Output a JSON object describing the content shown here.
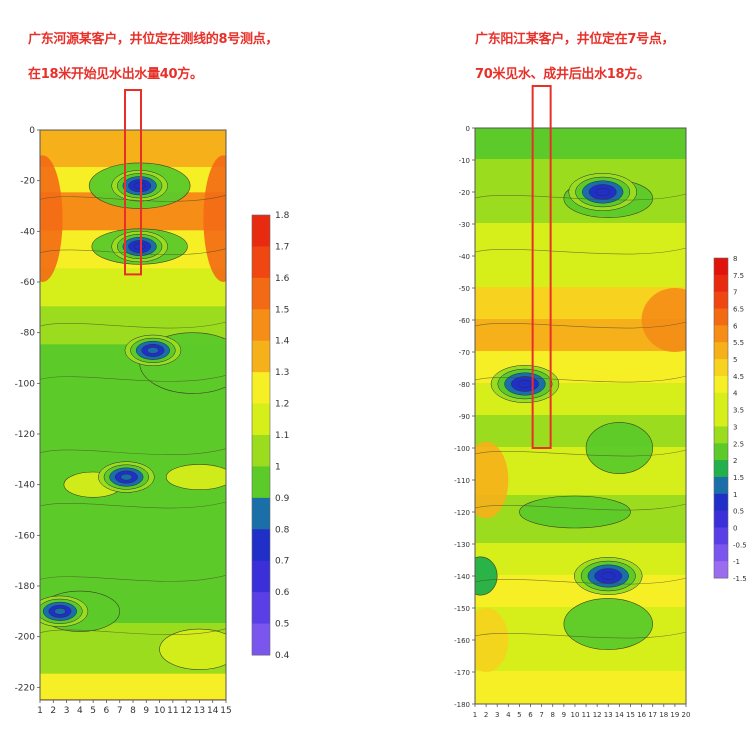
{
  "captions": {
    "left_line1": "广东河源某客户，井位定在测线的8号测点，",
    "left_line2": "在18米开始见水出水量40方。",
    "right_line1": "广东阳江某客户，井位定在7号点，",
    "right_line2": "70米见水、成井后出水18方。"
  },
  "colors": {
    "caption": "#e8302a",
    "marker": "#e8302a",
    "scale": [
      "#9b6cf0",
      "#7a55ee",
      "#5a3fe6",
      "#3a2fd8",
      "#1f2fc8",
      "#1a6fa8",
      "#21b04a",
      "#5ccb2a",
      "#9bdc1e",
      "#d6ee1a",
      "#f7ef26",
      "#f7d21e",
      "#f6b01a",
      "#f58d17",
      "#f36a14",
      "#ef4612",
      "#e82a10",
      "#e0140c"
    ]
  },
  "chart_data": [
    {
      "type": "heatmap",
      "title": "",
      "xlabel": "",
      "ylabel": "",
      "x": [
        1,
        2,
        3,
        4,
        5,
        6,
        7,
        8,
        9,
        10,
        11,
        12,
        13,
        14,
        15
      ],
      "x_tick_labels": [
        "1",
        "2",
        "3",
        "4",
        "5",
        "6",
        "7",
        "8",
        "9",
        "10",
        "11",
        "12",
        "13",
        "14",
        "15"
      ],
      "ylim": [
        -225,
        0
      ],
      "y_ticks": [
        0,
        -20,
        -40,
        -60,
        -80,
        -100,
        -120,
        -140,
        -160,
        -180,
        -200,
        -220
      ],
      "y_tick_labels": [
        "0",
        "-20",
        "-40",
        "-60",
        "-80",
        "-100",
        "-120",
        "-140",
        "-160",
        "-180",
        "-200",
        "-220"
      ],
      "colorbar": {
        "min": 0.4,
        "max": 1.8,
        "ticks": [
          1.8,
          1.7,
          1.6,
          1.5,
          1.4,
          1.3,
          1.2,
          1.1,
          1,
          0.9,
          0.8,
          0.7,
          0.6,
          0.5,
          0.4
        ],
        "tick_labels": [
          "1.8",
          "1.7",
          "1.6",
          "1.5",
          "1.4",
          "1.3",
          "1.2",
          "1.1",
          "1",
          "0.9",
          "0.8",
          "0.7",
          "0.6",
          "0.5",
          "0.4"
        ]
      },
      "marked_station": 8,
      "marked_depth_range": [
        0,
        -57
      ],
      "anomalies": [
        {
          "x": 8.5,
          "y": -22,
          "value": 0.75
        },
        {
          "x": 8.5,
          "y": -46,
          "value": 0.75
        },
        {
          "x": 9.5,
          "y": -87,
          "value": 0.85
        },
        {
          "x": 7.5,
          "y": -137,
          "value": 0.85
        },
        {
          "x": 2.5,
          "y": -190,
          "value": 0.85
        }
      ]
    },
    {
      "type": "heatmap",
      "title": "",
      "xlabel": "",
      "ylabel": "",
      "x": [
        1,
        2,
        3,
        4,
        5,
        6,
        7,
        8,
        9,
        10,
        11,
        12,
        13,
        14,
        15,
        16,
        17,
        18,
        19,
        20
      ],
      "x_tick_labels": [
        "1",
        "2",
        "3",
        "4",
        "5",
        "6",
        "7",
        "8",
        "9",
        "10",
        "11",
        "12",
        "13",
        "14",
        "15",
        "16",
        "17",
        "18",
        "19",
        "20"
      ],
      "ylim": [
        -180,
        0
      ],
      "y_ticks": [
        0,
        -10,
        -20,
        -30,
        -40,
        -50,
        -60,
        -70,
        -80,
        -90,
        -100,
        -110,
        -120,
        -130,
        -140,
        -150,
        -160,
        -170,
        -180
      ],
      "y_tick_labels": [
        "0",
        "-10",
        "-20",
        "-30",
        "-40",
        "-50",
        "-60",
        "-70",
        "-80",
        "-90",
        "-100",
        "-110",
        "-120",
        "-130",
        "-140",
        "-150",
        "-160",
        "-170",
        "-180"
      ],
      "colorbar": {
        "min": -1.5,
        "max": 8,
        "ticks": [
          8,
          7.5,
          7,
          6.5,
          6,
          5.5,
          5,
          4.5,
          4,
          3.5,
          3,
          2.5,
          2,
          1.5,
          1,
          0.5,
          0,
          -0.5,
          -1,
          -1.5
        ],
        "tick_labels": [
          "8",
          "7.5",
          "7",
          "6.5",
          "6",
          "5.5",
          "5",
          "4.5",
          "4",
          "3.5",
          "3",
          "2.5",
          "2",
          "1.5",
          "1",
          "0.5",
          "0",
          "-0.5",
          "-1",
          "-1.5"
        ]
      },
      "marked_station": 7,
      "marked_depth_range": [
        0,
        -100
      ],
      "anomalies": [
        {
          "x": 5.5,
          "y": -80,
          "value": 0.5
        },
        {
          "x": 12.5,
          "y": -20,
          "value": 1.0
        },
        {
          "x": 13,
          "y": -140,
          "value": 1.0
        }
      ]
    }
  ]
}
